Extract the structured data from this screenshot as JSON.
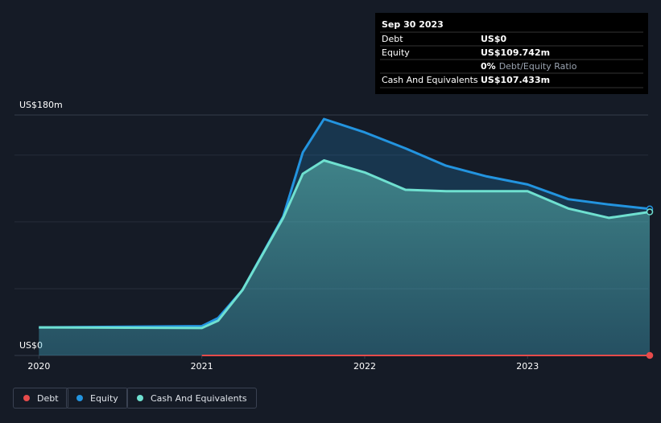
{
  "chart_data": {
    "type": "area",
    "x": [
      2020,
      2021,
      2021.1,
      2021.25,
      2021.5,
      2021.62,
      2021.75,
      2022,
      2022.25,
      2022.5,
      2022.75,
      2023,
      2023.25,
      2023.5,
      2023.75
    ],
    "series": [
      {
        "name": "Debt",
        "color": "#e64b4b",
        "values": [
          null,
          0,
          0,
          0,
          0,
          0,
          0,
          0,
          0,
          0,
          0,
          0,
          0,
          0,
          0
        ]
      },
      {
        "name": "Equity",
        "color": "#2394df",
        "values": [
          21,
          22,
          28,
          49,
          104,
          152,
          177,
          167,
          155,
          142,
          134,
          128,
          117,
          113,
          109.742
        ]
      },
      {
        "name": "Cash And Equivalents",
        "color": "#6fe0d0",
        "values": [
          21,
          20.5,
          26,
          49,
          103,
          136,
          146,
          137,
          124,
          123,
          123,
          123,
          110,
          103,
          107.433
        ]
      }
    ],
    "xlim": [
      2019.85,
      2023.74
    ],
    "xticks": [
      2020,
      2021,
      2022,
      2023
    ],
    "ylim": [
      0,
      180
    ],
    "yticks": [
      {
        "value": 0,
        "label": "US$0"
      },
      {
        "value": 180,
        "label": "US$180m"
      }
    ],
    "grid_lines": [
      50,
      100,
      150
    ],
    "tooltip": {
      "title": "Sep 30 2023",
      "rows": [
        {
          "label": "Debt",
          "value": "US$0"
        },
        {
          "label": "Equity",
          "value": "US$109.742m"
        },
        {
          "value": "0%",
          "label": "Debt/Equity Ratio"
        },
        {
          "label": "Cash And Equivalents",
          "value": "US$107.433m"
        }
      ]
    }
  }
}
